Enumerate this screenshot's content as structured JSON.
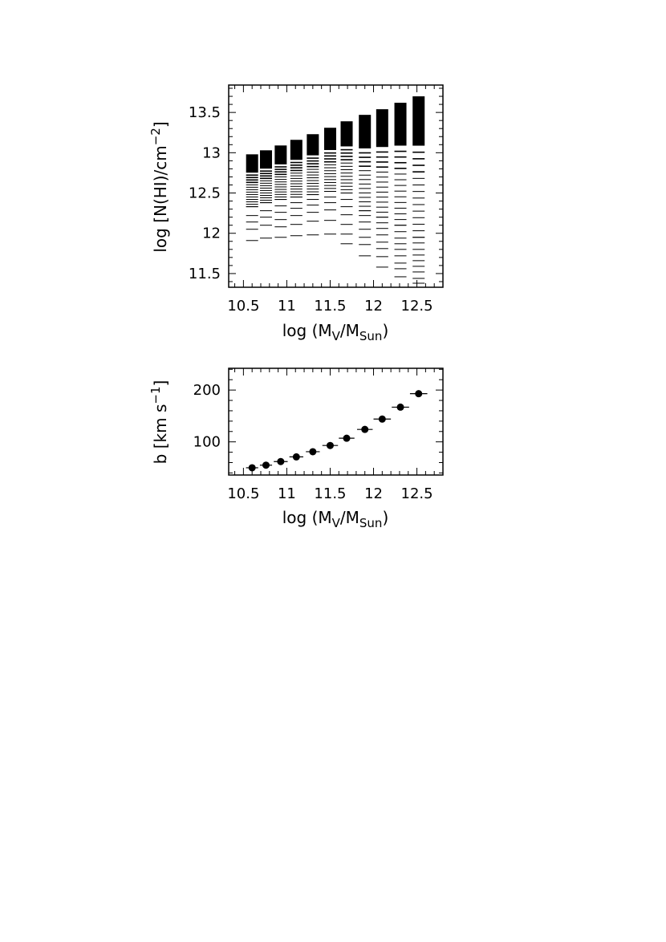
{
  "chart_data": [
    {
      "type": "bar",
      "description_free": true,
      "xlabel": {
        "prefix": "log (M",
        "sub1": "V",
        "mid": "/M",
        "sub2": "Sun",
        "suffix": ")"
      },
      "ylabel": {
        "prefix": "log [N(HI)/cm",
        "sup": "−2",
        "suffix": "]"
      },
      "xlim": [
        10.33,
        12.8
      ],
      "ylim": [
        11.33,
        13.84
      ],
      "x_ticks": [
        "10.5",
        "11",
        "11.5",
        "12",
        "12.5"
      ],
      "x_tick_values": [
        10.5,
        11,
        11.5,
        12,
        12.5
      ],
      "y_ticks": [
        "11.5",
        "12",
        "12.5",
        "13",
        "13.5"
      ],
      "y_tick_values": [
        11.5,
        12,
        12.5,
        13,
        13.5
      ],
      "bins": [
        {
          "x": 10.6,
          "top": 12.98,
          "lows": [
            12.33,
            12.22,
            12.14,
            12.05,
            11.91
          ]
        },
        {
          "x": 10.76,
          "top": 13.03,
          "lows": [
            12.38,
            12.28,
            12.2,
            12.1,
            11.94
          ]
        },
        {
          "x": 10.93,
          "top": 13.09,
          "lows": [
            12.42,
            12.34,
            12.26,
            12.17,
            12.08,
            11.95
          ]
        },
        {
          "x": 11.11,
          "top": 13.16,
          "lows": [
            12.45,
            12.38,
            12.31,
            12.22,
            12.11,
            11.97
          ]
        },
        {
          "x": 11.3,
          "top": 13.23,
          "lows": [
            12.48,
            12.42,
            12.35,
            12.26,
            12.15,
            11.98
          ]
        },
        {
          "x": 11.5,
          "top": 13.31,
          "lows": [
            12.52,
            12.45,
            12.38,
            12.29,
            12.16,
            11.99
          ]
        },
        {
          "x": 11.69,
          "top": 13.39,
          "lows": [
            12.5,
            12.42,
            12.33,
            12.23,
            12.11,
            11.99,
            11.87
          ]
        },
        {
          "x": 11.9,
          "top": 13.47,
          "lows": [
            12.28,
            12.22,
            12.14,
            12.05,
            11.95,
            11.86,
            11.72
          ]
        },
        {
          "x": 12.1,
          "top": 13.54,
          "lows": [
            12.2,
            12.13,
            12.06,
            11.98,
            11.89,
            11.81,
            11.71,
            11.58
          ]
        },
        {
          "x": 12.31,
          "top": 13.62,
          "lows": [
            12.1,
            12.02,
            11.94,
            11.87,
            11.8,
            11.72,
            11.63,
            11.56,
            11.46
          ]
        },
        {
          "x": 12.52,
          "top": 13.7,
          "lows": [
            11.95,
            11.88,
            11.8,
            11.73,
            11.66,
            11.59,
            11.52,
            11.44,
            11.38
          ]
        }
      ]
    },
    {
      "type": "scatter",
      "xlabel": {
        "prefix": "log (M",
        "sub1": "V",
        "mid": "/M",
        "sub2": "Sun",
        "suffix": ")"
      },
      "ylabel": {
        "prefix": "b [km s",
        "sup": "−1",
        "suffix": "]"
      },
      "xlim": [
        10.33,
        12.8
      ],
      "ylim": [
        36,
        242
      ],
      "x_ticks": [
        "10.5",
        "11",
        "11.5",
        "12",
        "12.5"
      ],
      "x_tick_values": [
        10.5,
        11,
        11.5,
        12,
        12.5
      ],
      "y_ticks": [
        "100",
        "200"
      ],
      "y_tick_values": [
        100,
        200
      ],
      "x": [
        10.6,
        10.76,
        10.93,
        11.11,
        11.3,
        11.5,
        11.69,
        11.9,
        12.1,
        12.31,
        12.52
      ],
      "y": [
        50,
        55,
        62,
        71,
        81,
        93,
        107,
        124,
        144,
        167,
        193
      ],
      "xerr": [
        0.07,
        0.07,
        0.08,
        0.08,
        0.08,
        0.09,
        0.09,
        0.09,
        0.1,
        0.1,
        0.1
      ]
    }
  ]
}
